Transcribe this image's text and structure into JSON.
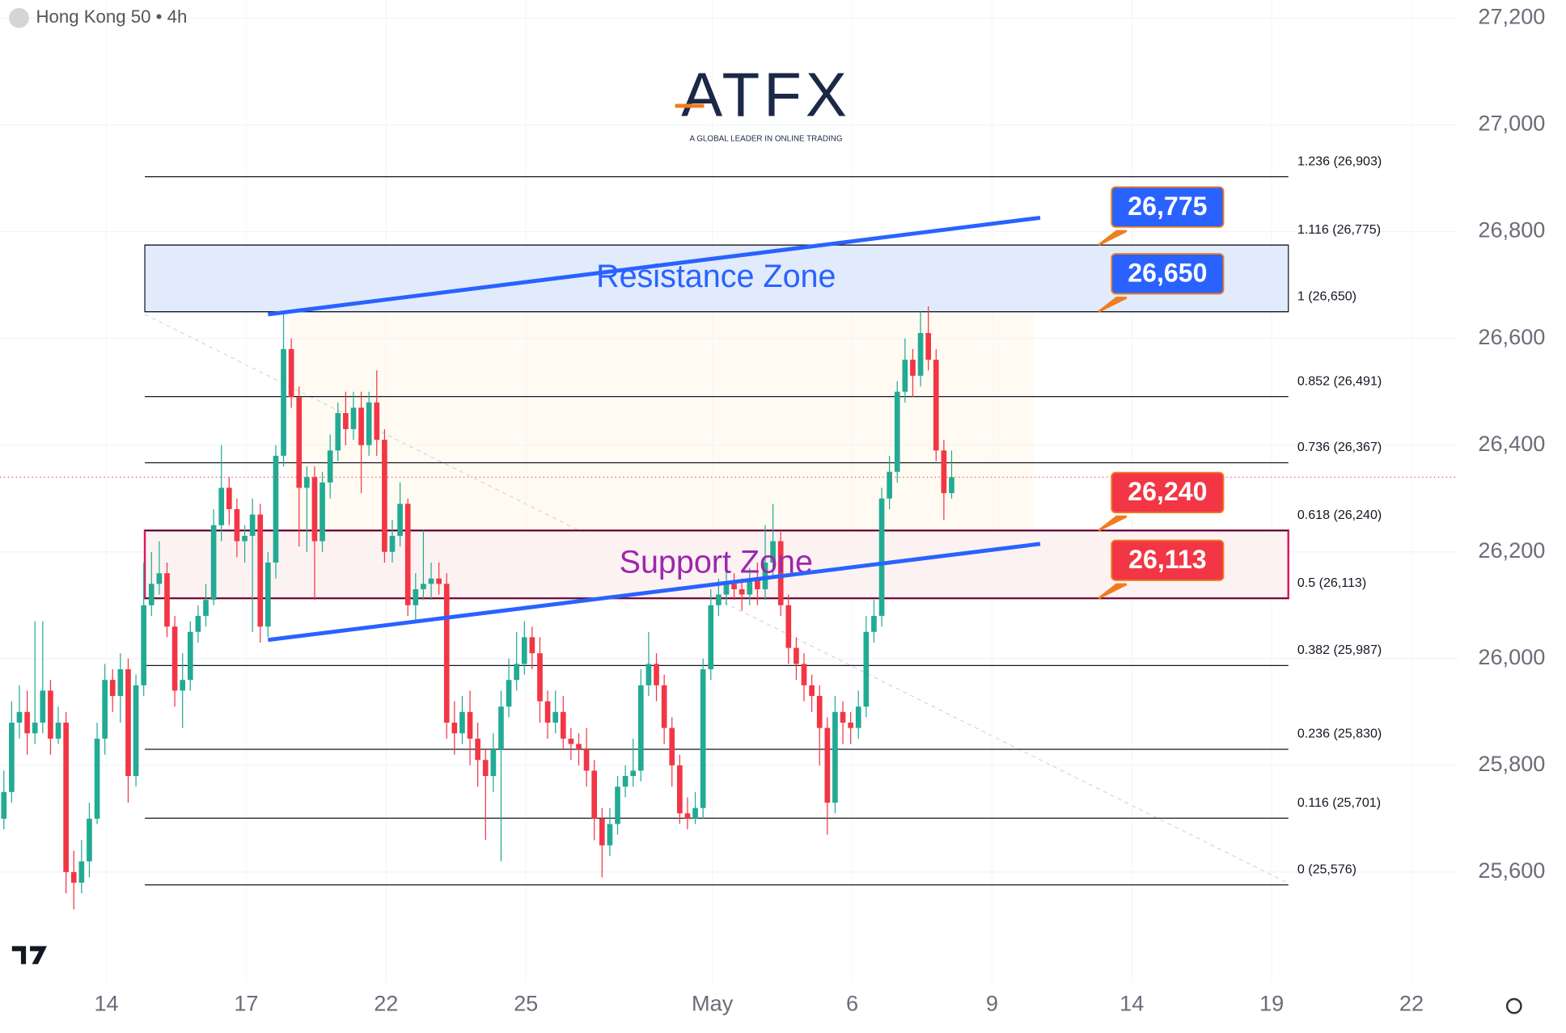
{
  "header": {
    "symbol": "Hong Kong 50 • 4h"
  },
  "logo": {
    "name": "ATFX",
    "tagline": "A GLOBAL LEADER IN ONLINE TRADING"
  },
  "chart_data": {
    "type": "candlestick",
    "open": [
      25700,
      25750,
      25880,
      25900,
      25860,
      25880,
      25940,
      25850,
      25880,
      25600,
      25580,
      25620,
      25700,
      25850,
      25960,
      25930,
      25980,
      25780,
      25950,
      26100,
      26140,
      26160,
      26060,
      25940,
      25960,
      26050,
      26080,
      26110,
      26250,
      26320,
      26280,
      26220,
      26230,
      26270,
      26060,
      26180,
      26380,
      26580,
      26490,
      26320,
      26340,
      26220,
      26330,
      26390,
      26460,
      26430,
      26470,
      26400,
      26480,
      26410,
      26200,
      26230,
      26290,
      26100,
      26130,
      26140,
      26150,
      26140,
      25880,
      25860,
      25900,
      25850,
      25810,
      25780,
      25830,
      25910,
      25960,
      25990,
      26040,
      26010,
      25920,
      25880,
      25900,
      25850,
      25840,
      25830,
      25790,
      25700,
      25650,
      25690,
      25760,
      25780,
      25790,
      25950,
      25990,
      25950,
      25870,
      25800,
      25710,
      25700,
      25720,
      25980,
      26100,
      26120,
      26140,
      26130,
      26120,
      26150,
      26130,
      26180,
      26220,
      26100,
      26020,
      25990,
      25950,
      25930,
      25870,
      25730,
      25900,
      25880,
      25870,
      25910,
      26050,
      26080,
      26300,
      26350,
      26500,
      26560,
      26530,
      26610,
      26560,
      26390,
      26310
    ],
    "high": [
      25790,
      25920,
      25950,
      25940,
      26070,
      26070,
      25960,
      25910,
      25900,
      25640,
      25660,
      25730,
      25880,
      25990,
      25980,
      26010,
      26000,
      25970,
      26180,
      26200,
      26220,
      26180,
      26080,
      26010,
      26070,
      26100,
      26140,
      26280,
      26400,
      26340,
      26300,
      26250,
      26300,
      26290,
      26200,
      26400,
      26650,
      26600,
      26510,
      26360,
      26360,
      26350,
      26420,
      26480,
      26500,
      26500,
      26500,
      26500,
      26540,
      26430,
      26260,
      26330,
      26300,
      26160,
      26240,
      26180,
      26180,
      26160,
      25920,
      25930,
      25940,
      25880,
      25830,
      25860,
      25940,
      26000,
      26050,
      26070,
      26060,
      26040,
      25940,
      25940,
      25930,
      25870,
      25860,
      25870,
      25810,
      25720,
      25720,
      25780,
      25800,
      25850,
      25980,
      26050,
      26010,
      25970,
      25890,
      25820,
      25740,
      25750,
      26000,
      26130,
      26150,
      26170,
      26160,
      26150,
      26170,
      26180,
      26250,
      26290,
      26240,
      26120,
      26040,
      26010,
      25970,
      25950,
      25890,
      25930,
      25920,
      25900,
      25940,
      26080,
      26110,
      26320,
      26380,
      26520,
      26600,
      26580,
      26650,
      26660,
      26580,
      26410,
      26390
    ],
    "low": [
      25680,
      25730,
      25850,
      25820,
      25840,
      25860,
      25820,
      25840,
      25560,
      25530,
      25560,
      25590,
      25690,
      25820,
      25900,
      25880,
      25730,
      25760,
      25930,
      26080,
      26120,
      26040,
      25910,
      25870,
      25940,
      26030,
      26060,
      26100,
      26220,
      26250,
      26190,
      26180,
      26050,
      26030,
      26040,
      26150,
      26360,
      26470,
      26210,
      26200,
      26110,
      26200,
      26300,
      26370,
      26400,
      26410,
      26310,
      26380,
      26380,
      26180,
      26180,
      26210,
      26080,
      26070,
      26110,
      26110,
      26120,
      25850,
      25820,
      25840,
      25800,
      25760,
      25660,
      25750,
      25620,
      25890,
      25940,
      25970,
      25980,
      25880,
      25850,
      25860,
      25830,
      25810,
      25800,
      25760,
      25660,
      25590,
      25630,
      25670,
      25740,
      25760,
      25770,
      25930,
      25920,
      25840,
      25760,
      25690,
      25680,
      25690,
      25700,
      25960,
      26080,
      26100,
      26110,
      26090,
      26100,
      26100,
      26110,
      26150,
      26080,
      25990,
      25960,
      25920,
      25900,
      25800,
      25670,
      25710,
      25840,
      25840,
      25850,
      25890,
      26030,
      26060,
      26280,
      26330,
      26480,
      26490,
      26510,
      26540,
      26370,
      26260,
      26300
    ],
    "close": [
      25750,
      25880,
      25900,
      25860,
      25880,
      25940,
      25850,
      25880,
      25600,
      25580,
      25620,
      25700,
      25850,
      25960,
      25930,
      25980,
      25780,
      25950,
      26100,
      26140,
      26160,
      26060,
      25940,
      25960,
      26050,
      26080,
      26110,
      26250,
      26320,
      26280,
      26220,
      26230,
      26270,
      26060,
      26180,
      26380,
      26580,
      26490,
      26320,
      26340,
      26220,
      26330,
      26390,
      26460,
      26430,
      26470,
      26400,
      26480,
      26410,
      26200,
      26230,
      26290,
      26100,
      26130,
      26140,
      26150,
      26140,
      25880,
      25860,
      25900,
      25850,
      25810,
      25780,
      25830,
      25910,
      25960,
      25990,
      26040,
      26010,
      25920,
      25880,
      25900,
      25850,
      25840,
      25830,
      25790,
      25700,
      25650,
      25690,
      25760,
      25780,
      25790,
      25950,
      25990,
      25950,
      25870,
      25800,
      25710,
      25700,
      25720,
      25980,
      26100,
      26120,
      26140,
      26130,
      26120,
      26150,
      26130,
      26180,
      26220,
      26100,
      26020,
      25990,
      25950,
      25930,
      25870,
      25730,
      25900,
      25880,
      25870,
      25910,
      26050,
      26080,
      26300,
      26350,
      26500,
      26560,
      26530,
      26610,
      26560,
      26390,
      26310,
      26340
    ],
    "up_color": "#22ab94",
    "down_color": "#f23645",
    "last_price_color": "#f23645",
    "xlim": [
      -0.5,
      187.2
    ],
    "xticks": [
      {
        "value": 13.2,
        "label": "14"
      },
      {
        "value": 31.2,
        "label": "17"
      },
      {
        "value": 49.2,
        "label": "22"
      },
      {
        "value": 67.2,
        "label": "25"
      },
      {
        "value": 91.2,
        "label": "May"
      },
      {
        "value": 109.2,
        "label": "6"
      },
      {
        "value": 127.2,
        "label": "9"
      },
      {
        "value": 145.2,
        "label": "14"
      },
      {
        "value": 163.2,
        "label": "19"
      },
      {
        "value": 181.2,
        "label": "22"
      }
    ],
    "ylim": [
      25392,
      27234
    ],
    "yticks": [
      {
        "value": 25600,
        "label": "25,600"
      },
      {
        "value": 25800,
        "label": "25,800"
      },
      {
        "value": 26000,
        "label": "26,000"
      },
      {
        "value": 26200,
        "label": "26,200"
      },
      {
        "value": 26400,
        "label": "26,400"
      },
      {
        "value": 26600,
        "label": "26,600"
      },
      {
        "value": 26800,
        "label": "26,800"
      },
      {
        "value": 27000,
        "label": "27,000"
      },
      {
        "value": 27200,
        "label": "27,200"
      }
    ],
    "grid": true,
    "fib_levels": [
      {
        "value": 26903,
        "label": "1.236 (26,903)"
      },
      {
        "value": 26775,
        "label": "1.116 (26,775)"
      },
      {
        "value": 26650,
        "label": "1 (26,650)"
      },
      {
        "value": 26491,
        "label": "0.852 (26,491)"
      },
      {
        "value": 26367,
        "label": "0.736 (26,367)"
      },
      {
        "value": 26240,
        "label": "0.618 (26,240)"
      },
      {
        "value": 26113,
        "label": "0.5 (26,113)"
      },
      {
        "value": 25987,
        "label": "0.382 (25,987)"
      },
      {
        "value": 25830,
        "label": "0.236 (25,830)"
      },
      {
        "value": 25701,
        "label": "0.116 (25,701)"
      },
      {
        "value": 25576,
        "label": "0 (25,576)"
      }
    ],
    "zones": [
      {
        "label": "Resistance Zone",
        "range": [
          26650,
          26775
        ],
        "fill": "#dce8fb",
        "border": "#131722",
        "label_color": "#2962ff"
      },
      {
        "label": "Support Zone",
        "range": [
          26113,
          26240
        ],
        "fill": "#fdf0f0",
        "border": "#d81b60",
        "label_color": "#9c27b0"
      }
    ],
    "callouts": [
      {
        "value": 26775,
        "label": "26,775",
        "color": "#2962ff"
      },
      {
        "value": 26650,
        "label": "26,650",
        "color": "#2962ff"
      },
      {
        "value": 26240,
        "label": "26,240",
        "color": "#f23645"
      },
      {
        "value": 26113,
        "label": "26,113",
        "color": "#f23645"
      }
    ],
    "trendlines": [
      {
        "x": [
          34,
          133.4
        ],
        "y": [
          26645,
          26826
        ],
        "color": "#2962ff"
      },
      {
        "x": [
          34,
          133.4
        ],
        "y": [
          26035,
          26215
        ],
        "color": "#2962ff"
      }
    ]
  }
}
